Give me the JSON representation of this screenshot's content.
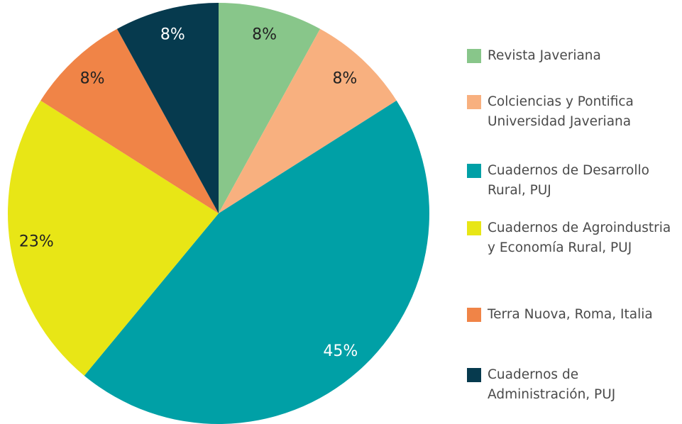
{
  "chart_data": {
    "type": "pie",
    "categories": [
      "Revista Javeriana",
      "Colciencias y Pontifica Universidad Javeriana",
      "Cuadernos de Desarrollo Rural, PUJ",
      "Cuadernos de Agroindustria y Economía Rural, PUJ",
      "Terra Nuova, Roma, Italia",
      "Cuadernos de Administración, PUJ"
    ],
    "values": [
      8,
      8,
      45,
      23,
      8,
      8
    ],
    "value_labels": [
      "8%",
      "8%",
      "45%",
      "23%",
      "8%",
      "8%"
    ],
    "colors": [
      "#88c68a",
      "#f8b07f",
      "#00a0a6",
      "#e8e616",
      "#f08447",
      "#063a4e"
    ],
    "legend": "right"
  }
}
